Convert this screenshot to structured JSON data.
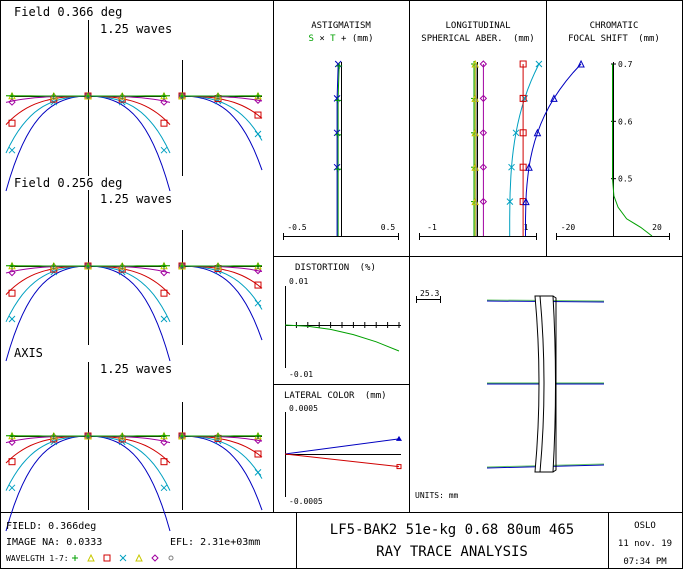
{
  "ray_fans": [
    {
      "title": "Field 0.366 deg",
      "scale": "1.25 waves"
    },
    {
      "title": "Field 0.256 deg",
      "scale": "1.25 waves"
    },
    {
      "title": "AXIS",
      "scale": "1.25 waves"
    }
  ],
  "astigmatism": {
    "title": "ASTIGMATISM",
    "legend_s": "S",
    "legend_t": "T",
    "unit": "(mm)",
    "xmin_label": "-0.5",
    "xmax_label": "0.5",
    "xlim": [
      -0.5,
      0.5
    ],
    "s_values": [
      -0.02,
      -0.03,
      -0.03,
      -0.03,
      -0.03
    ],
    "t_values": [
      -0.02,
      -0.03,
      -0.03,
      -0.03,
      -0.03
    ],
    "heights": [
      1.0,
      0.8,
      0.6,
      0.4,
      0.0
    ]
  },
  "longitudinal": {
    "title_line1": "LONGITUDINAL",
    "title_line2": "SPHERICAL ABER.",
    "unit": "(mm)",
    "xmin_label": "-1",
    "xmax_label": "1",
    "xlim": [
      -1,
      1
    ]
  },
  "chromatic": {
    "title_line1": "CHROMATIC",
    "title_line2": "FOCAL SHIFT",
    "unit": "(mm)",
    "xmin_label": "-20",
    "xmax_label": "20",
    "xlim": [
      -20,
      20
    ],
    "ytick_labels": [
      "0.7",
      "0.6",
      "0.5"
    ],
    "yticks": [
      0.7,
      0.6,
      0.5
    ],
    "ylim": [
      0.4,
      0.7
    ],
    "curve_x": [
      0,
      0,
      0,
      0.5,
      2,
      5,
      10,
      14
    ],
    "curve_y": [
      0.7,
      0.6,
      0.5,
      0.47,
      0.45,
      0.43,
      0.415,
      0.4
    ]
  },
  "distortion": {
    "title": "DISTORTION",
    "unit": "(%)",
    "ymax_label": "0.01",
    "ymin_label": "-0.01",
    "ylim": [
      -0.01,
      0.01
    ],
    "x": [
      0,
      0.2,
      0.4,
      0.6,
      0.8,
      1.0
    ],
    "y": [
      0,
      -0.0003,
      -0.0011,
      -0.0024,
      -0.0042,
      -0.0065
    ]
  },
  "lateral_color": {
    "title": "LATERAL COLOR",
    "unit": "(mm)",
    "ymax_label": "0.0005",
    "ymin_label": "-0.0005",
    "ylim": [
      -0.0005,
      0.0005
    ],
    "blue_end": 0.00018,
    "red_end": -0.00015
  },
  "layout": {
    "scale_label": "25.3",
    "units": "UNITS: mm"
  },
  "footer": {
    "field": "FIELD: 0.366deg",
    "image_na": "IMAGE NA: 0.0333",
    "efl": "EFL: 2.31e+03mm",
    "wavelength_label": "WAVELGTH 1-7:",
    "title": "LF5-BAK2 51e-kg 0.68 80um 465",
    "subtitle": "RAY TRACE ANALYSIS",
    "program": "OSLO",
    "date": "11 nov. 19",
    "time": "07:34 PM"
  },
  "colors": {
    "green": "#00a000",
    "yellow": "#c8c800",
    "red": "#d00000",
    "magenta": "#a000a0",
    "cyan": "#00a0c0",
    "blue": "#0000c0",
    "gray": "#808080"
  }
}
